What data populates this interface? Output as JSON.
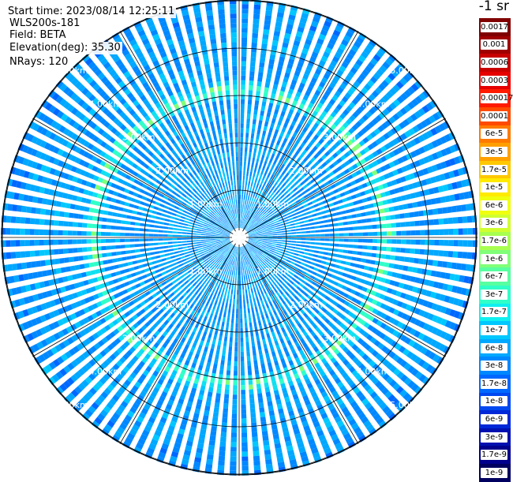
{
  "header": {
    "start_time": "Start time: 2023/08/14 12:25:11",
    "instrument": "WLS200s-181",
    "field": "Field: BETA",
    "elevation": "Elevation(deg): 35.30",
    "nrays": "NRays: 120",
    "unit": "-1 sr"
  },
  "chart_data": {
    "type": "heatmap",
    "projection": "polar PPI",
    "grid": true,
    "range_ring_labels_km": [
      "1.00km",
      "2.00km",
      "3.00km",
      "4.00km",
      "5.00km"
    ],
    "range_rings_km": [
      1,
      2,
      3,
      4,
      5
    ],
    "radial_grid_angles_deg": [
      0,
      30,
      60,
      90,
      120,
      150,
      180,
      210,
      240,
      270,
      300,
      330
    ],
    "enhanced_ring_km": 3.1,
    "colorbar": {
      "labels": [
        "0.0017",
        "0.001",
        "0.0006",
        "0.0003",
        "0.00017",
        "0.0001",
        "6e-5",
        "3e-5",
        "1.7e-5",
        "1e-5",
        "6e-6",
        "3e-6",
        "1.7e-6",
        "1e-6",
        "6e-7",
        "3e-7",
        "1.7e-7",
        "1e-7",
        "6e-8",
        "3e-8",
        "1.7e-8",
        "1e-8",
        "6e-9",
        "3e-9",
        "1.7e-9",
        "1e-9"
      ],
      "colors": [
        "#800000",
        "#a00000",
        "#c80000",
        "#e60000",
        "#ff1a00",
        "#ff4a00",
        "#ff7a00",
        "#ffa000",
        "#ffc800",
        "#ffea00",
        "#f0ff10",
        "#d0ff30",
        "#a8ff50",
        "#80ff78",
        "#58ffa0",
        "#30ffc8",
        "#10f0f0",
        "#00c8ff",
        "#00a8ff",
        "#0088ff",
        "#0068ff",
        "#0048f0",
        "#0028d8",
        "#0010b0",
        "#00008c",
        "#000060"
      ]
    }
  }
}
